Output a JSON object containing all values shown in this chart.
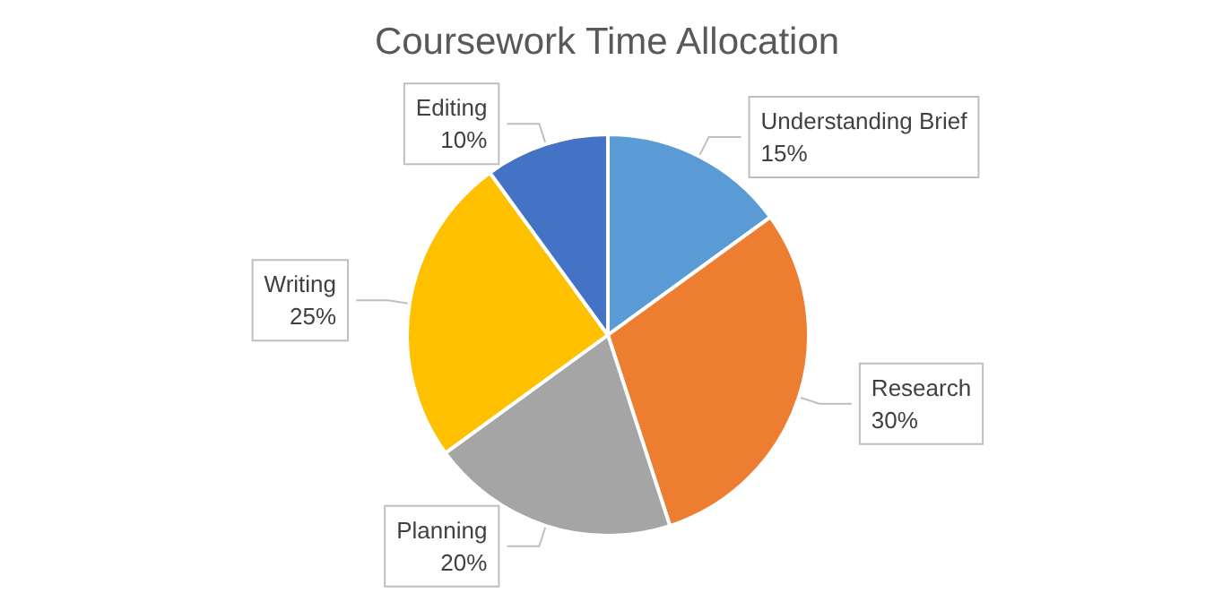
{
  "chart_data": {
    "type": "pie",
    "title": "Coursework Time Allocation",
    "categories": [
      "Understanding Brief",
      "Research",
      "Planning",
      "Writing",
      "Editing"
    ],
    "values": [
      15,
      30,
      20,
      25,
      10
    ],
    "value_labels": [
      "15%",
      "30%",
      "20%",
      "25%",
      "10%"
    ],
    "colors": [
      "#5b9bd5",
      "#ed7d31",
      "#a5a5a5",
      "#ffc000",
      "#4472c4"
    ],
    "legend": false
  }
}
